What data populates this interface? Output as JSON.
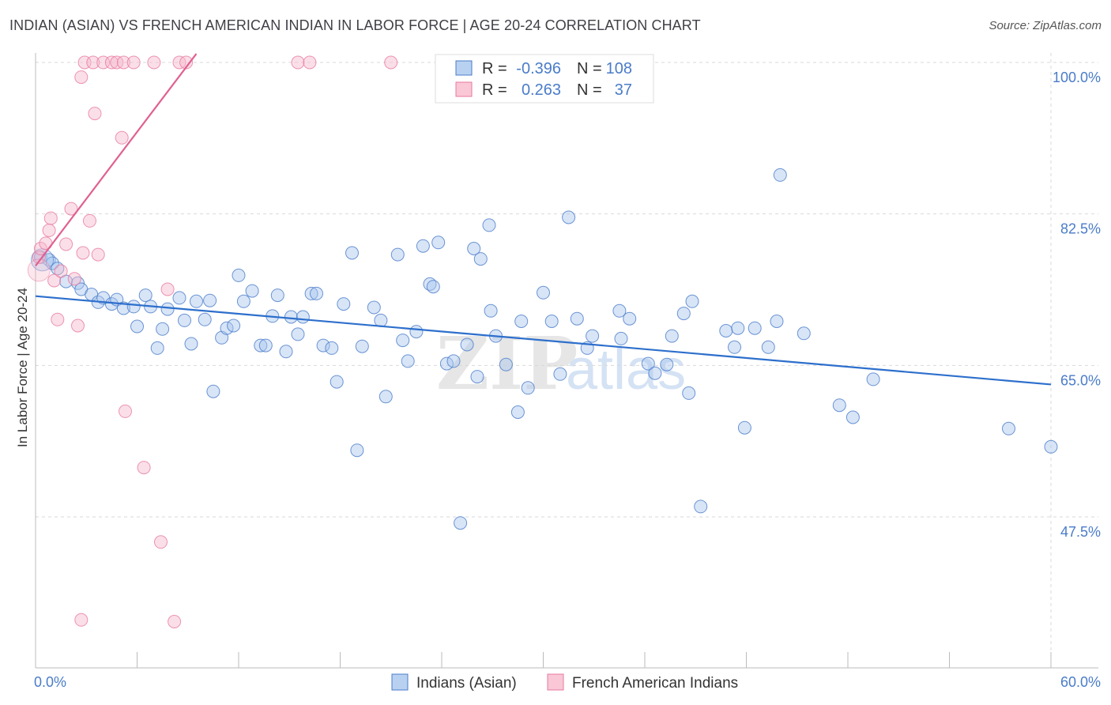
{
  "title": "INDIAN (ASIAN) VS FRENCH AMERICAN INDIAN IN LABOR FORCE | AGE 20-24 CORRELATION CHART",
  "source": "Source: ZipAtlas.com",
  "watermark": "ZIPatlas",
  "colors": {
    "blue": "#4a7cc9",
    "blue_fill": "#a8c5ee",
    "blue_line": "#2d6fcc",
    "pink": "#e87aa0",
    "pink_fill": "#f7b9cc",
    "pink_line": "#e06090",
    "grid": "#d9d9d9",
    "axis": "#bbbbbb"
  },
  "legend": {
    "r_label": "R =",
    "n_label": "N =",
    "rows": [
      {
        "r": "-0.396",
        "n": "108",
        "series": "blue"
      },
      {
        "r": "0.263",
        "n": "37",
        "series": "pink"
      }
    ]
  },
  "chart_data": {
    "type": "scatter",
    "title": "INDIAN (ASIAN) VS FRENCH AMERICAN INDIAN IN LABOR FORCE | AGE 20-24 CORRELATION CHART",
    "xlabel": "",
    "ylabel": "In Labor Force | Age 20-24",
    "xlim": [
      0,
      60
    ],
    "ylim": [
      28,
      102
    ],
    "x_tick_labels": [
      "0.0%",
      "60.0%"
    ],
    "y_ticks": [
      47.5,
      65.0,
      82.5,
      100.0
    ],
    "y_tick_labels": [
      "47.5%",
      "65.0%",
      "82.5%",
      "100.0%"
    ],
    "grid": true,
    "legend_position": "top-center",
    "series": [
      {
        "name": "Indians (Asian)",
        "color": "blue",
        "r": -0.396,
        "n": 108,
        "trend": {
          "x": [
            0,
            60
          ],
          "y": [
            73.0,
            62.8
          ]
        },
        "points": [
          [
            0.3,
            77.5
          ],
          [
            0.8,
            77.2
          ],
          [
            1.0,
            76.8
          ],
          [
            1.3,
            76.2
          ],
          [
            1.8,
            74.7
          ],
          [
            2.5,
            74.5
          ],
          [
            2.7,
            73.8
          ],
          [
            3.3,
            73.2
          ],
          [
            3.7,
            72.3
          ],
          [
            4.0,
            72.8
          ],
          [
            4.5,
            72.1
          ],
          [
            4.8,
            72.6
          ],
          [
            5.2,
            71.6
          ],
          [
            5.8,
            71.8
          ],
          [
            6.0,
            69.5
          ],
          [
            6.5,
            73.1
          ],
          [
            6.8,
            71.8
          ],
          [
            7.2,
            67.0
          ],
          [
            7.5,
            69.2
          ],
          [
            7.8,
            71.5
          ],
          [
            8.5,
            72.8
          ],
          [
            8.8,
            70.2
          ],
          [
            9.2,
            67.5
          ],
          [
            9.5,
            72.4
          ],
          [
            10.0,
            70.3
          ],
          [
            10.3,
            72.5
          ],
          [
            10.5,
            62.0
          ],
          [
            11.0,
            68.2
          ],
          [
            11.3,
            69.3
          ],
          [
            11.7,
            69.6
          ],
          [
            12.0,
            75.4
          ],
          [
            12.3,
            72.4
          ],
          [
            12.8,
            73.6
          ],
          [
            13.3,
            67.3
          ],
          [
            13.6,
            67.3
          ],
          [
            14.0,
            70.7
          ],
          [
            14.3,
            73.1
          ],
          [
            14.8,
            66.6
          ],
          [
            15.1,
            70.6
          ],
          [
            15.5,
            68.6
          ],
          [
            15.8,
            70.6
          ],
          [
            16.3,
            73.3
          ],
          [
            16.6,
            73.3
          ],
          [
            17.0,
            67.3
          ],
          [
            17.5,
            67.0
          ],
          [
            17.8,
            63.1
          ],
          [
            18.2,
            72.1
          ],
          [
            18.7,
            78.0
          ],
          [
            19.0,
            55.2
          ],
          [
            19.3,
            67.2
          ],
          [
            20.0,
            71.7
          ],
          [
            20.4,
            70.2
          ],
          [
            20.7,
            61.4
          ],
          [
            21.4,
            77.8
          ],
          [
            21.7,
            67.9
          ],
          [
            22.0,
            65.5
          ],
          [
            22.5,
            68.9
          ],
          [
            22.9,
            78.8
          ],
          [
            23.3,
            74.4
          ],
          [
            23.5,
            74.1
          ],
          [
            23.8,
            79.2
          ],
          [
            24.3,
            65.2
          ],
          [
            24.7,
            65.5
          ],
          [
            25.1,
            46.8
          ],
          [
            25.5,
            67.4
          ],
          [
            25.9,
            78.5
          ],
          [
            26.1,
            63.7
          ],
          [
            26.3,
            77.3
          ],
          [
            26.8,
            81.2
          ],
          [
            26.9,
            71.3
          ],
          [
            27.2,
            68.4
          ],
          [
            27.8,
            65.1
          ],
          [
            28.5,
            59.6
          ],
          [
            28.7,
            70.1
          ],
          [
            29.1,
            62.4
          ],
          [
            30.0,
            73.4
          ],
          [
            30.5,
            70.1
          ],
          [
            31.0,
            64.0
          ],
          [
            31.5,
            82.1
          ],
          [
            32.0,
            70.4
          ],
          [
            32.6,
            67.0
          ],
          [
            32.9,
            68.4
          ],
          [
            34.5,
            71.3
          ],
          [
            34.6,
            68.1
          ],
          [
            35.1,
            70.4
          ],
          [
            36.2,
            65.2
          ],
          [
            36.6,
            64.1
          ],
          [
            37.3,
            65.1
          ],
          [
            37.6,
            68.4
          ],
          [
            38.3,
            71.0
          ],
          [
            38.6,
            61.8
          ],
          [
            38.8,
            72.4
          ],
          [
            39.3,
            48.7
          ],
          [
            40.8,
            69.0
          ],
          [
            41.3,
            67.1
          ],
          [
            41.5,
            69.3
          ],
          [
            41.9,
            57.8
          ],
          [
            42.5,
            69.3
          ],
          [
            43.3,
            67.1
          ],
          [
            43.8,
            70.1
          ],
          [
            44.0,
            87.0
          ],
          [
            45.4,
            68.7
          ],
          [
            47.5,
            60.4
          ],
          [
            48.3,
            59.0
          ],
          [
            49.5,
            63.4
          ],
          [
            57.5,
            57.7
          ],
          [
            60.0,
            55.6
          ]
        ]
      },
      {
        "name": "French American Indians",
        "color": "pink",
        "r": 0.263,
        "n": 37,
        "trend": {
          "x": [
            0,
            9.5
          ],
          "y": [
            76.5,
            101.0
          ]
        },
        "points": [
          [
            0.2,
            77.5
          ],
          [
            0.3,
            78.5
          ],
          [
            0.6,
            79.1
          ],
          [
            0.9,
            82.0
          ],
          [
            0.8,
            80.6
          ],
          [
            1.1,
            74.8
          ],
          [
            1.3,
            70.3
          ],
          [
            1.5,
            75.9
          ],
          [
            1.8,
            79.0
          ],
          [
            2.1,
            83.1
          ],
          [
            2.3,
            75.0
          ],
          [
            2.5,
            69.6
          ],
          [
            2.7,
            98.3
          ],
          [
            2.8,
            78.0
          ],
          [
            2.9,
            100.0
          ],
          [
            3.2,
            81.7
          ],
          [
            3.4,
            100.0
          ],
          [
            3.5,
            94.1
          ],
          [
            3.7,
            77.8
          ],
          [
            4.0,
            100.0
          ],
          [
            4.5,
            100.0
          ],
          [
            4.8,
            100.0
          ],
          [
            5.1,
            91.3
          ],
          [
            5.2,
            100.0
          ],
          [
            5.3,
            59.7
          ],
          [
            5.8,
            100.0
          ],
          [
            6.4,
            53.2
          ],
          [
            7.0,
            100.0
          ],
          [
            7.4,
            44.6
          ],
          [
            7.8,
            73.8
          ],
          [
            8.2,
            35.4
          ],
          [
            8.5,
            100.0
          ],
          [
            8.9,
            100.0
          ],
          [
            2.7,
            35.6
          ],
          [
            15.5,
            100.0
          ],
          [
            16.2,
            100.0
          ],
          [
            21.0,
            100.0
          ]
        ]
      }
    ]
  }
}
